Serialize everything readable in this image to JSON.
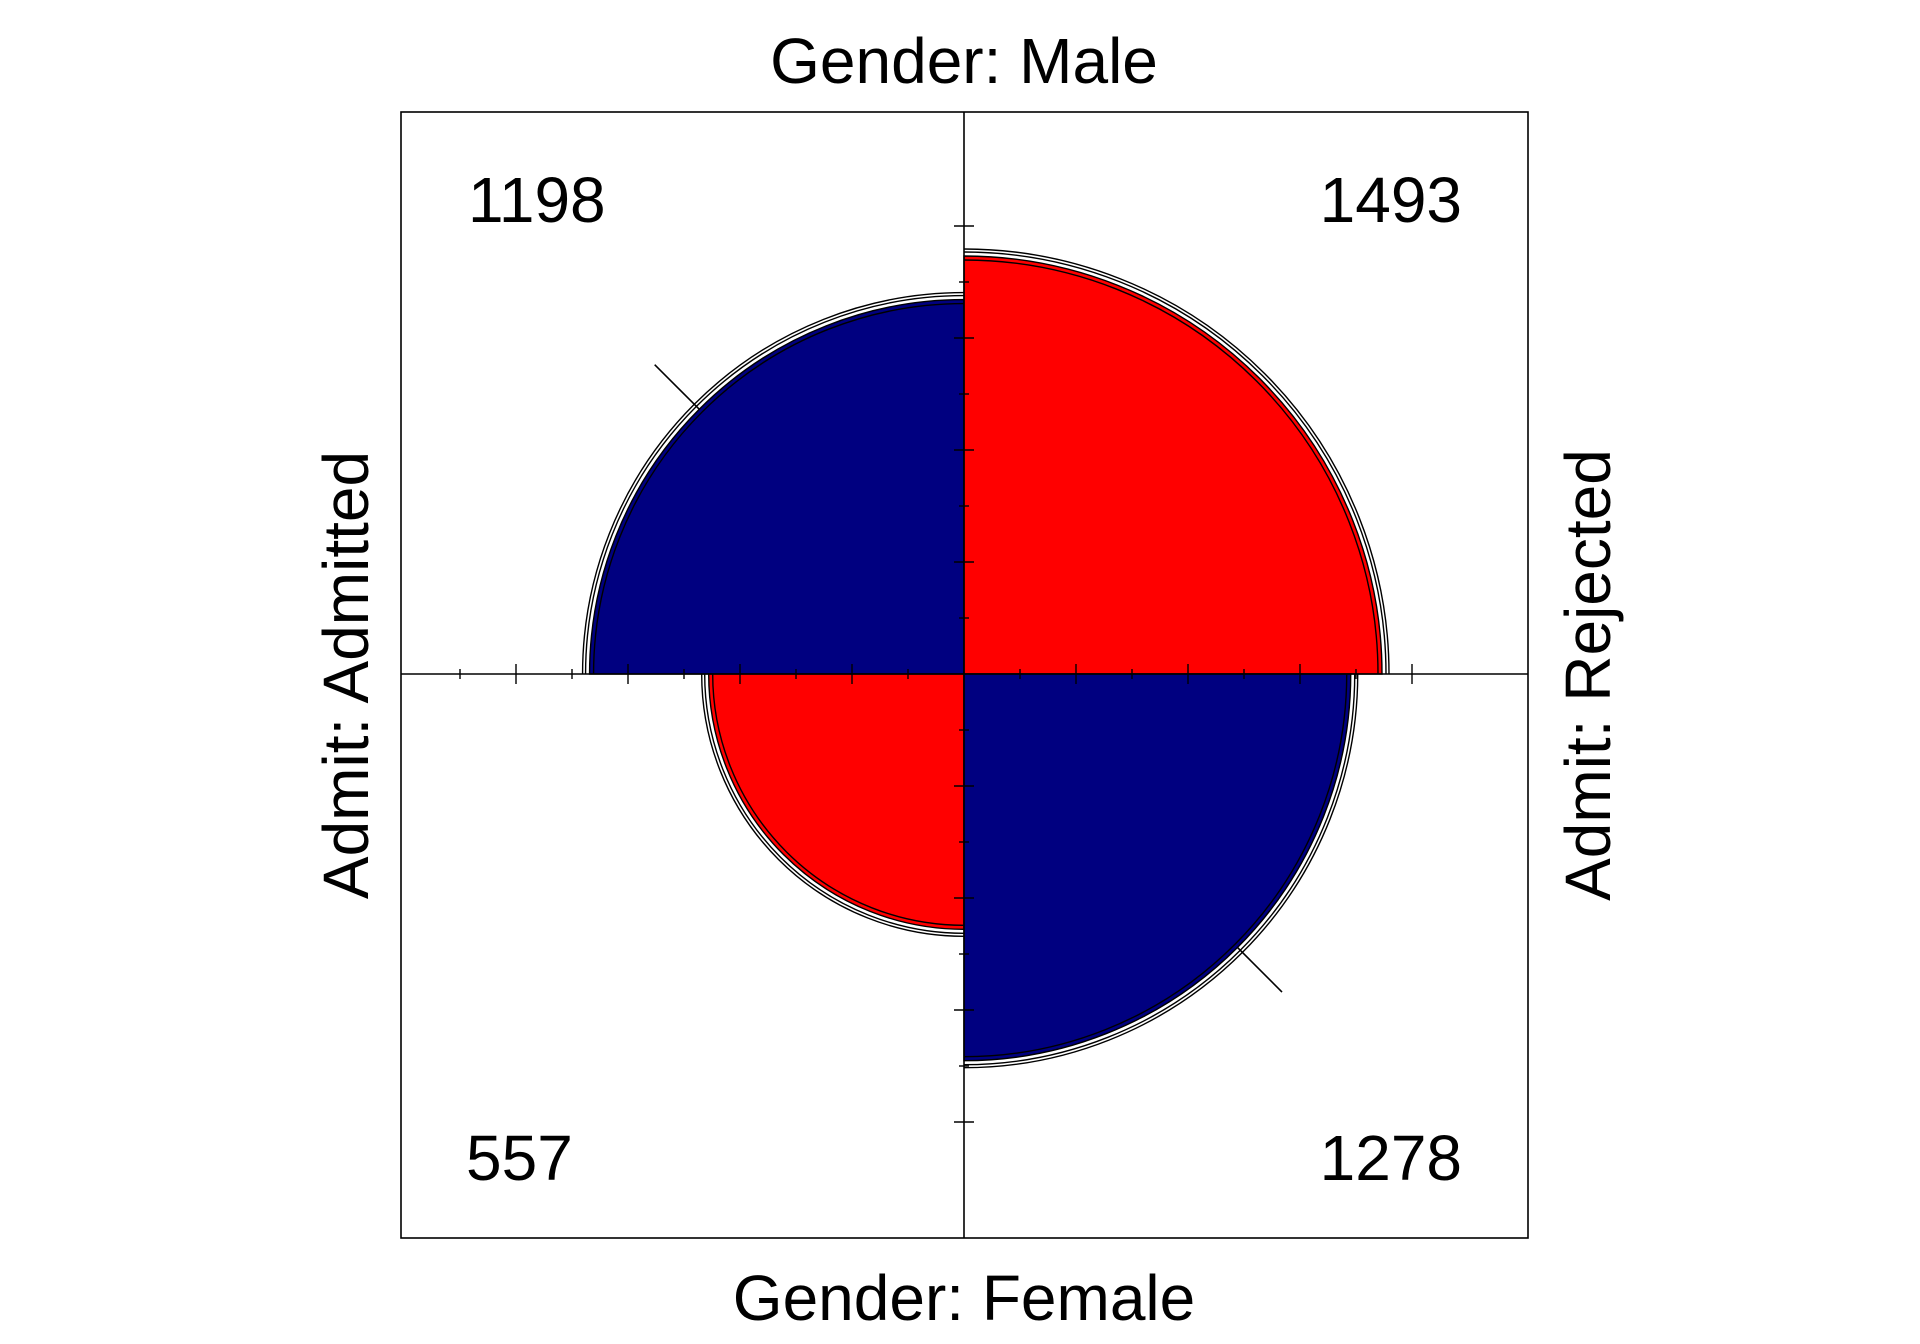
{
  "chart_data": {
    "type": "fourfold",
    "row_variable": "Gender",
    "column_variable": "Admit",
    "labels": {
      "top": "Gender: Male",
      "bottom": "Gender: Female",
      "left": "Admit: Admitted",
      "right": "Admit: Rejected"
    },
    "cells": [
      {
        "quadrant": "top-left",
        "gender": "Male",
        "admit": "Admitted",
        "count": 1198,
        "color": "#000080"
      },
      {
        "quadrant": "top-right",
        "gender": "Male",
        "admit": "Rejected",
        "count": 1493,
        "color": "#ff0000"
      },
      {
        "quadrant": "bottom-left",
        "gender": "Female",
        "admit": "Admitted",
        "count": 557,
        "color": "#ff0000"
      },
      {
        "quadrant": "bottom-right",
        "gender": "Female",
        "admit": "Rejected",
        "count": 1278,
        "color": "#000080"
      }
    ],
    "confidence_rings": true,
    "axis_ticks": true
  }
}
